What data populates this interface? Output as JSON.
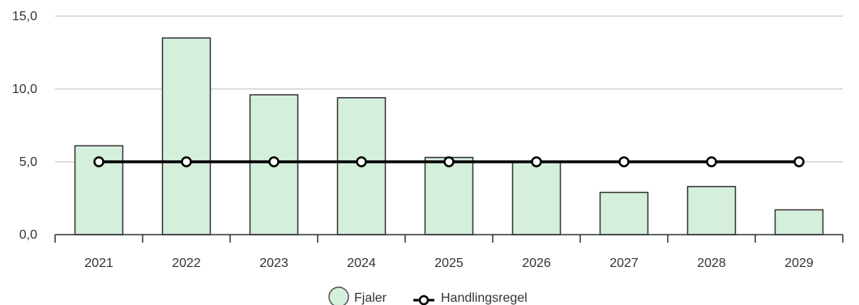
{
  "chart_data": {
    "type": "bar",
    "categories": [
      "2021",
      "2022",
      "2023",
      "2024",
      "2025",
      "2026",
      "2027",
      "2028",
      "2029"
    ],
    "series": [
      {
        "name": "Fjaler",
        "type": "bar",
        "values": [
          6.1,
          13.5,
          9.6,
          9.4,
          5.3,
          5.0,
          2.9,
          3.3,
          1.7
        ]
      },
      {
        "name": "Handlingsregel",
        "type": "line",
        "values": [
          5.0,
          5.0,
          5.0,
          5.0,
          5.0,
          5.0,
          5.0,
          5.0,
          5.0
        ]
      }
    ],
    "ylim": [
      0,
      15
    ],
    "yticks": [
      "0,0",
      "5,0",
      "10,0",
      "15,0"
    ],
    "ytick_values": [
      0,
      5,
      10,
      15
    ],
    "grid": "horizontal",
    "legend": "bottom-center",
    "colors": {
      "bar_fill": "#d4efdc",
      "bar_stroke": "#333333",
      "line": "#000000",
      "marker_fill": "#ffffff",
      "grid": "#bbbbbb"
    }
  }
}
